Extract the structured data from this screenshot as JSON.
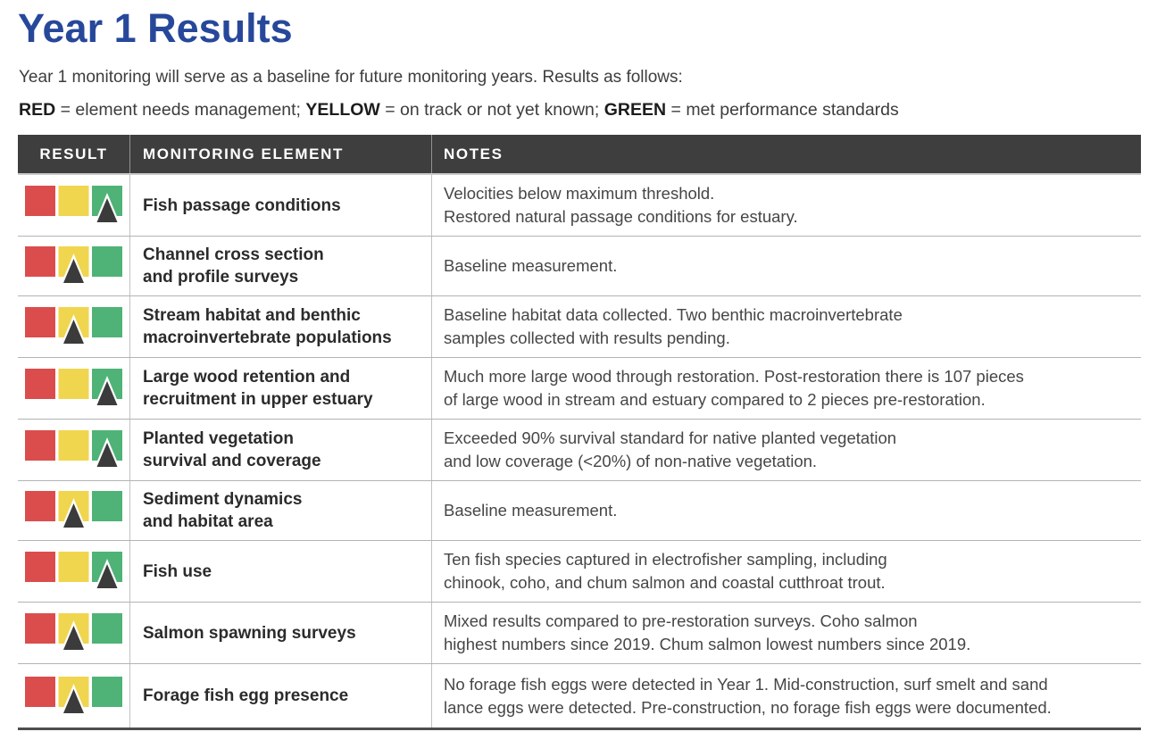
{
  "page": {
    "title": "Year 1 Results",
    "intro": "Year 1 monitoring will serve as a baseline for future monitoring years. Results as follows:",
    "legend_segments": [
      {
        "text": "RED",
        "bold": true
      },
      {
        "text": " = element needs management; ",
        "bold": false
      },
      {
        "text": "YELLOW",
        "bold": true
      },
      {
        "text": " = on track or not yet known; ",
        "bold": false
      },
      {
        "text": "GREEN",
        "bold": true
      },
      {
        "text": " = met performance standards",
        "bold": false
      }
    ]
  },
  "colors": {
    "title_blue": "#27489a",
    "header_bg": "#3e3e3e",
    "red": "#db4d4d",
    "yellow": "#f0d64f",
    "green": "#4fb377",
    "triangle": "#3b3b3b",
    "row_divider": "#b3b3b3"
  },
  "table": {
    "columns": [
      "RESULT",
      "MONITORING ELEMENT",
      "NOTES"
    ],
    "rows": [
      {
        "result": "green",
        "element_lines": [
          "Fish passage conditions"
        ],
        "notes_lines": [
          "Velocities below maximum threshold.",
          "Restored natural passage conditions for estuary."
        ]
      },
      {
        "result": "yellow",
        "element_lines": [
          "Channel cross section",
          "and profile surveys"
        ],
        "notes_lines": [
          "Baseline measurement."
        ]
      },
      {
        "result": "yellow",
        "element_lines": [
          "Stream habitat and benthic",
          "macroinvertebrate populations"
        ],
        "notes_lines": [
          "Baseline habitat data collected. Two benthic macroinvertebrate",
          "samples collected with results pending."
        ]
      },
      {
        "result": "green",
        "element_lines": [
          "Large wood retention and",
          "recruitment in upper estuary"
        ],
        "notes_lines": [
          "Much more large wood through restoration. Post-restoration there is 107 pieces",
          "of large wood in stream and estuary compared to 2 pieces pre-restoration."
        ]
      },
      {
        "result": "green",
        "element_lines": [
          "Planted vegetation",
          "survival and coverage"
        ],
        "notes_lines": [
          "Exceeded 90% survival standard for native planted vegetation",
          "and low coverage (<20%) of non-native vegetation."
        ]
      },
      {
        "result": "yellow",
        "element_lines": [
          "Sediment dynamics",
          "and habitat area"
        ],
        "notes_lines": [
          "Baseline measurement."
        ]
      },
      {
        "result": "green",
        "element_lines": [
          "Fish use"
        ],
        "notes_lines": [
          "Ten fish species captured in electrofisher sampling, including",
          "chinook, coho, and chum salmon and coastal cutthroat trout."
        ]
      },
      {
        "result": "yellow",
        "element_lines": [
          "Salmon spawning surveys"
        ],
        "notes_lines": [
          "Mixed results compared to pre-restoration surveys. Coho salmon",
          "highest numbers since 2019. Chum salmon lowest numbers since 2019."
        ]
      },
      {
        "result": "yellow",
        "element_lines": [
          "Forage fish egg presence"
        ],
        "notes_lines": [
          "No forage fish eggs were detected in Year 1. Mid-construction, surf smelt and sand",
          "lance eggs were detected. Pre-construction, no forage fish eggs were documented."
        ]
      }
    ]
  }
}
